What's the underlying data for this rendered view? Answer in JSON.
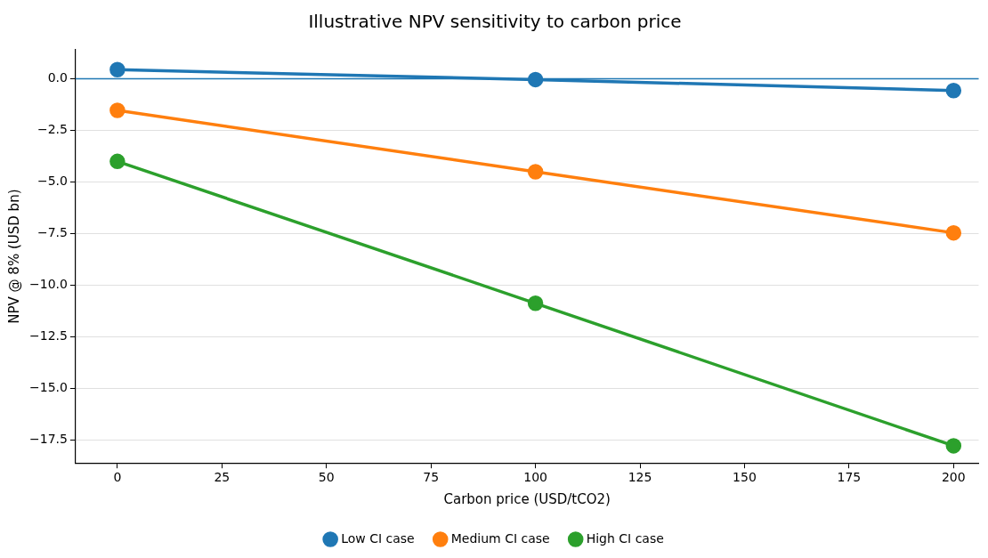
{
  "chart_data": {
    "type": "line",
    "title": "Illustrative NPV sensitivity to carbon price",
    "xlabel": "Carbon price (USD/tCO2)",
    "ylabel": "NPV @ 8% (USD bn)",
    "x": [
      0,
      100,
      200
    ],
    "series": [
      {
        "name": "Low CI case",
        "color": "#1f77b4",
        "values": [
          0.44,
          -0.04,
          -0.57
        ]
      },
      {
        "name": "Medium CI case",
        "color": "#ff7f0e",
        "values": [
          -1.53,
          -4.5,
          -7.46
        ]
      },
      {
        "name": "High CI case",
        "color": "#2ca02c",
        "values": [
          -4.0,
          -10.87,
          -17.77
        ]
      }
    ],
    "xlim": [
      -10,
      206
    ],
    "xticks": [
      0,
      25,
      50,
      75,
      100,
      125,
      150,
      175,
      200
    ],
    "ylim": [
      -18.6,
      1.4
    ],
    "yticks": [
      {
        "value": 0,
        "label": "0.0"
      },
      {
        "value": -2.5,
        "label": "−2.5"
      },
      {
        "value": -5,
        "label": "−5.0"
      },
      {
        "value": -7.5,
        "label": "−7.5"
      },
      {
        "value": -10,
        "label": "−10.0"
      },
      {
        "value": -12.5,
        "label": "−12.5"
      },
      {
        "value": -15,
        "label": "−15.0"
      },
      {
        "value": -17.5,
        "label": "−17.5"
      }
    ],
    "ref_lines": [
      {
        "axis": "y",
        "value": 0,
        "color": "#1f77b4"
      }
    ],
    "grid": "y",
    "legend": "bottom",
    "marker": "circle",
    "line_style": "solid"
  }
}
